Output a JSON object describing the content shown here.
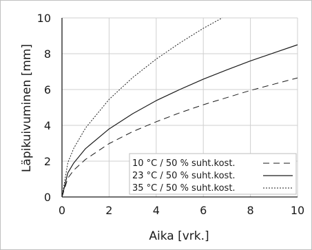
{
  "chart_data": {
    "type": "line",
    "xlabel": "Aika [vrk.]",
    "ylabel": "Läpikuivuminen [mm]",
    "xlim": [
      0,
      10
    ],
    "ylim": [
      0,
      10
    ],
    "xticks": [
      "0",
      "2",
      "4",
      "6",
      "8",
      "10"
    ],
    "yticks": [
      "0",
      "2",
      "4",
      "6",
      "8",
      "10"
    ],
    "grid": true,
    "legend_position": "bottom-right",
    "series": [
      {
        "name": "10 °C / 50 % suht.kost.",
        "style": "dashed",
        "x": [
          0,
          0.25,
          0.5,
          1,
          2,
          3,
          4,
          5,
          6,
          7,
          8,
          9,
          10
        ],
        "y": [
          0,
          1.05,
          1.5,
          2.1,
          2.98,
          3.65,
          4.2,
          4.7,
          5.15,
          5.55,
          5.95,
          6.3,
          6.65
        ]
      },
      {
        "name": "23 °C / 50 % suht.kost.",
        "style": "solid",
        "x": [
          0,
          0.25,
          0.5,
          1,
          2,
          3,
          4,
          5,
          6,
          7,
          8,
          9,
          10
        ],
        "y": [
          0,
          1.35,
          1.9,
          2.7,
          3.8,
          4.65,
          5.38,
          6.0,
          6.58,
          7.1,
          7.6,
          8.05,
          8.5
        ]
      },
      {
        "name": "35 °C / 50 % suht.kost.",
        "style": "dotted",
        "x": [
          0,
          0.25,
          0.5,
          1,
          2,
          3,
          4,
          5,
          6,
          6.8
        ],
        "y": [
          0,
          1.92,
          2.72,
          3.85,
          5.45,
          6.67,
          7.7,
          8.6,
          9.42,
          10.0
        ]
      }
    ]
  }
}
